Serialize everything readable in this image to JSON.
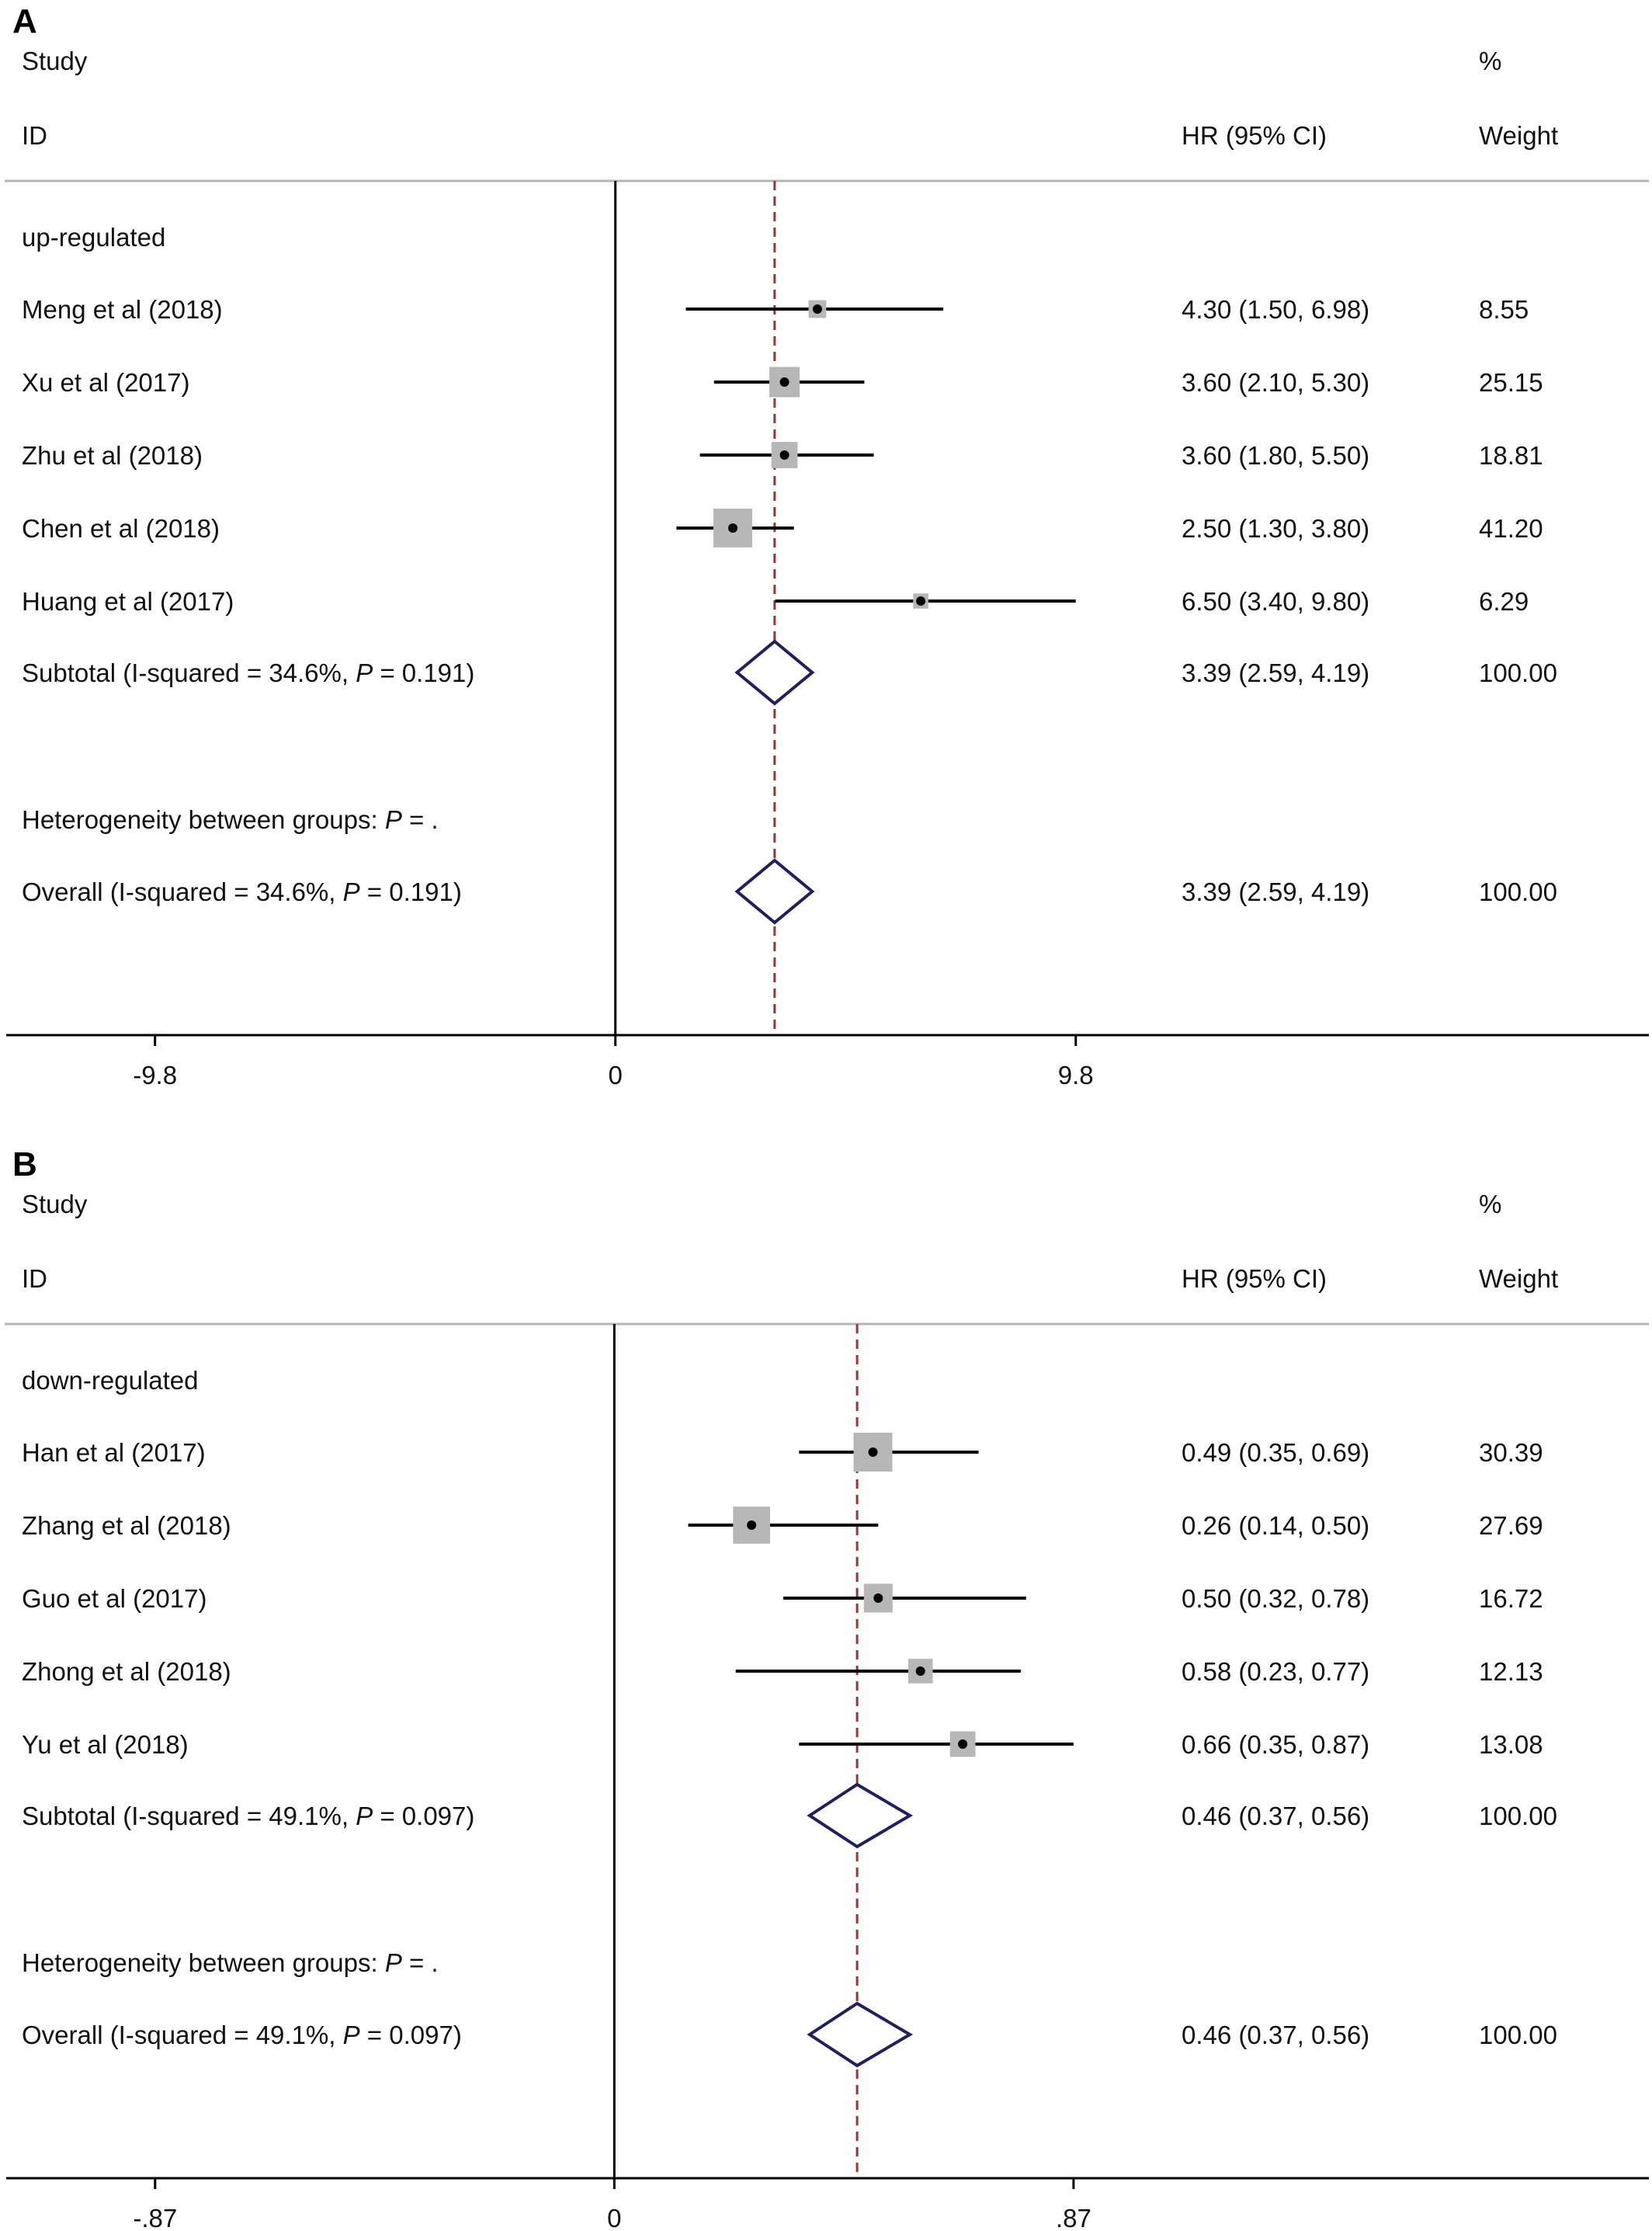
{
  "chart_data": [
    {
      "type": "forest",
      "panel_label": "A",
      "header": {
        "study": "Study",
        "id": "ID",
        "ci": "HR (95% CI)",
        "pct": "%",
        "weight": "Weight"
      },
      "group_label": "up-regulated",
      "studies": [
        {
          "label": "Meng et al  (2018)",
          "est": 4.3,
          "lo": 1.5,
          "hi": 6.98,
          "ci_text": "4.30 (1.50, 6.98)",
          "weight": 8.55,
          "weight_text": "8.55"
        },
        {
          "label": "Xu et al  (2017)",
          "est": 3.6,
          "lo": 2.1,
          "hi": 5.3,
          "ci_text": "3.60 (2.10, 5.30)",
          "weight": 25.15,
          "weight_text": "25.15"
        },
        {
          "label": "Zhu et al  (2018)",
          "est": 3.6,
          "lo": 1.8,
          "hi": 5.5,
          "ci_text": "3.60 (1.80, 5.50)",
          "weight": 18.81,
          "weight_text": "18.81"
        },
        {
          "label": "Chen et al  (2018)",
          "est": 2.5,
          "lo": 1.3,
          "hi": 3.8,
          "ci_text": "2.50 (1.30, 3.80)",
          "weight": 41.2,
          "weight_text": "41.20"
        },
        {
          "label": "Huang et al  (2017)",
          "est": 6.5,
          "lo": 3.4,
          "hi": 9.8,
          "ci_text": "6.50 (3.40, 9.80)",
          "weight": 6.29,
          "weight_text": "6.29"
        }
      ],
      "subtotal": {
        "label_pre": "Subtotal  (I-squared = 34.6%, ",
        "label_p": "P",
        "label_post": " = 0.191)",
        "est": 3.39,
        "lo": 2.59,
        "hi": 4.19,
        "ci_text": "3.39 (2.59, 4.19)",
        "weight_text": "100.00"
      },
      "heterogeneity": {
        "pre": "Heterogeneity between groups: ",
        "p": "P",
        "post": " = ."
      },
      "overall": {
        "label_pre": "Overall  (I-squared = 34.6%, ",
        "label_p": "P",
        "label_post": " = 0.191)",
        "est": 3.39,
        "lo": 2.59,
        "hi": 4.19,
        "ci_text": "3.39 (2.59, 4.19)",
        "weight_text": "100.00"
      },
      "axis": {
        "min": -13,
        "max": 22,
        "null_value": 0,
        "ticks": [
          -9.8,
          0,
          9.8
        ],
        "tick_labels": [
          "-9.8",
          "0",
          "9.8"
        ]
      },
      "colors": {
        "ci_line": "#000000",
        "box": "#b7b7b7",
        "diamond": "#1f1f66",
        "ref_line": "#a03232",
        "separator": "#b4b4b4"
      }
    },
    {
      "type": "forest",
      "panel_label": "B",
      "header": {
        "study": "Study",
        "id": "ID",
        "ci": "HR (95% CI)",
        "pct": "%",
        "weight": "Weight"
      },
      "group_label": "down-regulated",
      "studies": [
        {
          "label": "Han et al  (2017)",
          "est": 0.49,
          "lo": 0.35,
          "hi": 0.69,
          "ci_text": "0.49 (0.35, 0.69)",
          "weight": 30.39,
          "weight_text": "30.39"
        },
        {
          "label": "Zhang et al  (2018)",
          "est": 0.26,
          "lo": 0.14,
          "hi": 0.5,
          "ci_text": "0.26 (0.14, 0.50)",
          "weight": 27.69,
          "weight_text": "27.69"
        },
        {
          "label": "Guo et al  (2017)",
          "est": 0.5,
          "lo": 0.32,
          "hi": 0.78,
          "ci_text": "0.50 (0.32, 0.78)",
          "weight": 16.72,
          "weight_text": "16.72"
        },
        {
          "label": "Zhong et al  (2018)",
          "est": 0.58,
          "lo": 0.23,
          "hi": 0.77,
          "ci_text": "0.58 (0.23, 0.77)",
          "weight": 12.13,
          "weight_text": "12.13"
        },
        {
          "label": "Yu et al  (2018)",
          "est": 0.66,
          "lo": 0.35,
          "hi": 0.87,
          "ci_text": "0.66 (0.35, 0.87)",
          "weight": 13.08,
          "weight_text": "13.08"
        }
      ],
      "subtotal": {
        "label_pre": "Subtotal  (I-squared = 49.1%, ",
        "label_p": "P",
        "label_post": " = 0.097)",
        "est": 0.46,
        "lo": 0.37,
        "hi": 0.56,
        "ci_text": "0.46 (0.37, 0.56)",
        "weight_text": "100.00"
      },
      "heterogeneity": {
        "pre": "Heterogeneity between groups: ",
        "p": "P",
        "post": " = ."
      },
      "overall": {
        "label_pre": "Overall  (I-squared = 49.1%, ",
        "label_p": "P",
        "label_post": " = 0.097)",
        "est": 0.46,
        "lo": 0.37,
        "hi": 0.56,
        "ci_text": "0.46 (0.37, 0.56)",
        "weight_text": "100.00"
      },
      "axis": {
        "min": -1.155,
        "max": 1.96,
        "null_value": 0,
        "ticks": [
          -0.87,
          0,
          0.87
        ],
        "tick_labels": [
          "-.87",
          "0",
          ".87"
        ]
      },
      "colors": {
        "ci_line": "#000000",
        "box": "#b7b7b7",
        "diamond": "#1f1f66",
        "ref_line": "#a03232",
        "separator": "#b4b4b4"
      }
    }
  ]
}
